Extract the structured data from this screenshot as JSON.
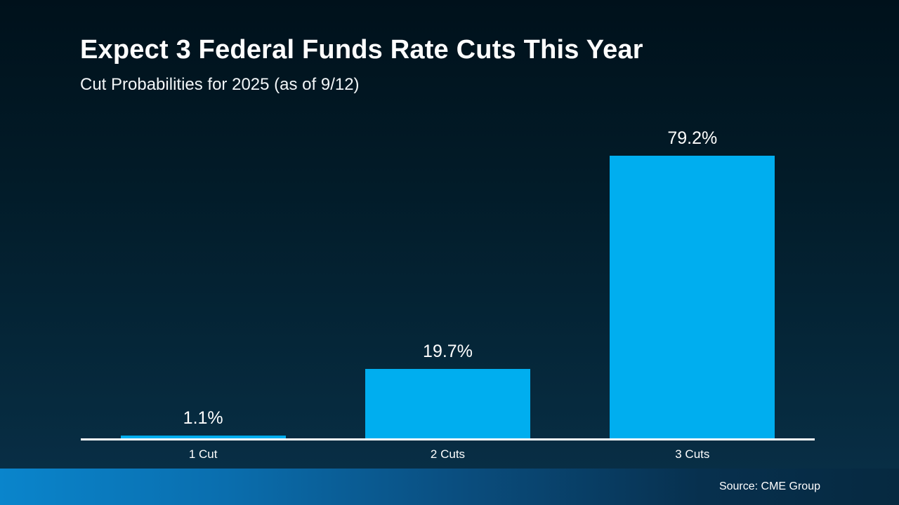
{
  "slide": {
    "title": "Expect 3 Federal Funds Rate Cuts This Year",
    "subtitle": "Cut Probabilities for 2025 (as of 9/12)",
    "source": "Source: CME Group"
  },
  "chart_data": {
    "type": "bar",
    "title": "Expect 3 Federal Funds Rate Cuts This Year",
    "subtitle": "Cut Probabilities for 2025 (as of 9/12)",
    "categories": [
      "1 Cut",
      "2 Cuts",
      "3 Cuts"
    ],
    "values": [
      1.1,
      19.7,
      79.2
    ],
    "value_labels": [
      "1.1%",
      "19.7%",
      "79.2%"
    ],
    "xlabel": "",
    "ylabel": "",
    "ylim": [
      0,
      100
    ],
    "grid": false,
    "legend": "none",
    "bar_color": "#00AEEF",
    "axis_line_color": "#FFFFFF",
    "background_top": "#00111B",
    "background_bottom": "#0A3049",
    "footer_left_color": "#0A85CC",
    "footer_right_color": "#062940",
    "source": "Source: CME Group"
  }
}
